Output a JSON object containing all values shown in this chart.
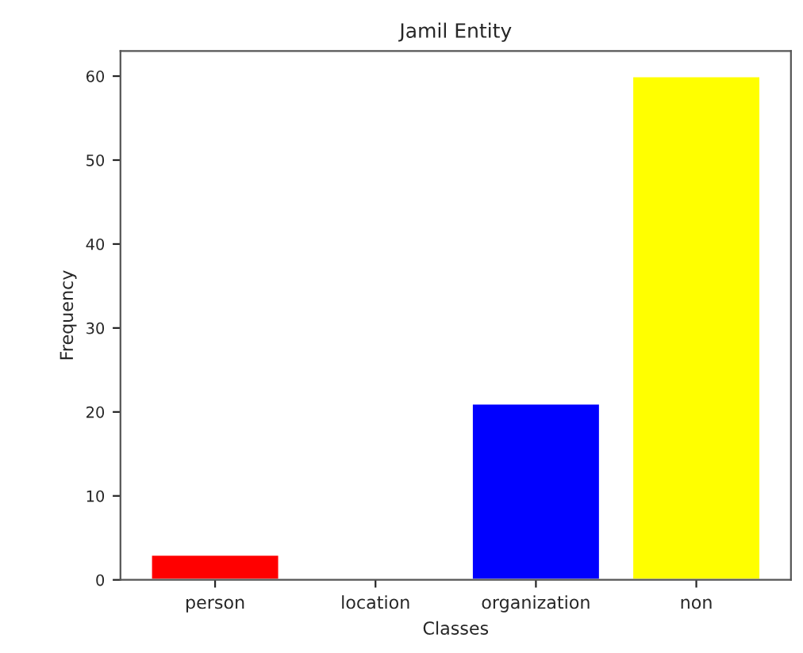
{
  "chart_data": {
    "type": "bar",
    "title": "Jamil Entity",
    "xlabel": "Classes",
    "ylabel": "Frequency",
    "categories": [
      "person",
      "location",
      "organization",
      "non"
    ],
    "values": [
      3,
      0,
      21,
      60
    ],
    "colors": [
      "#ff0000",
      null,
      "#0000ff",
      "#ffff00"
    ],
    "ylim": [
      0,
      63
    ],
    "yticks": [
      0,
      10,
      20,
      30,
      40,
      50,
      60
    ],
    "grid": false
  }
}
